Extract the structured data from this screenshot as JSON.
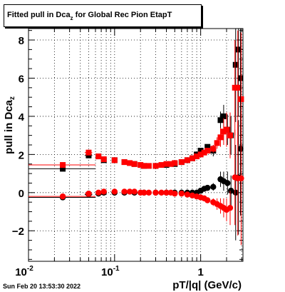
{
  "title": {
    "main": "Fitted pull in Dca",
    "sub": "z",
    "rest": " for Global Rec Pion EtapT"
  },
  "datestamp": "Sun Feb 20 13:53:30 2022",
  "chart_data": {
    "type": "scatter",
    "xlabel": "pT/|q| (GeV/c)",
    "ylabel": "pull in Dca",
    "ylabel_sub": "z",
    "x_scale": "log",
    "xlim": [
      0.01,
      3.1
    ],
    "ylim": [
      -3.6,
      8.6
    ],
    "grid": true,
    "x_ticks": [
      {
        "v": 0.01,
        "label": "10",
        "exp": "-2"
      },
      {
        "v": 0.1,
        "label": "10",
        "exp": "-1"
      },
      {
        "v": 1,
        "label": "1",
        "exp": ""
      }
    ],
    "y_ticks": [
      {
        "v": -2,
        "label": "−2"
      },
      {
        "v": 0,
        "label": "0"
      },
      {
        "v": 2,
        "label": "2"
      },
      {
        "v": 4,
        "label": "4"
      },
      {
        "v": 6,
        "label": "6"
      },
      {
        "v": 8,
        "label": "8"
      }
    ],
    "colors": {
      "black_series": "#000000",
      "red_series": "#ff0000"
    },
    "series": [
      {
        "color": "black",
        "marker": "square",
        "x": [
          0.025,
          0.05,
          0.065,
          0.075,
          0.1,
          0.13,
          0.17,
          0.22,
          0.3,
          0.4,
          0.5,
          0.6,
          0.7,
          0.8,
          0.9,
          1.0,
          1.2,
          1.4,
          1.7,
          1.85,
          2.05,
          2.25,
          2.55,
          2.75,
          2.9
        ],
        "y": [
          1.25,
          1.95,
          1.9,
          1.7,
          1.7,
          1.6,
          1.5,
          1.4,
          1.4,
          1.45,
          1.5,
          1.6,
          1.7,
          1.8,
          2.0,
          2.2,
          2.4,
          2.2,
          3.8,
          4.0,
          3.3,
          3.0,
          6.7,
          7.5,
          6.0
        ],
        "err": [
          0.12,
          0.1,
          0.08,
          0.08,
          0.07,
          0.06,
          0.05,
          0.05,
          0.05,
          0.05,
          0.05,
          0.06,
          0.06,
          0.07,
          0.08,
          0.1,
          0.12,
          0.3,
          0.45,
          0.6,
          0.8,
          1.0,
          3.0,
          3.5,
          3.8
        ],
        "xerr_low": [
          0.015,
          0.005,
          0.003,
          0.003,
          0.005,
          0.005,
          0.005,
          0.01,
          0.01,
          0.01,
          0.01,
          0.01,
          0.01,
          0.01,
          0.01,
          0.01,
          0.02,
          0.02,
          0.03,
          0.03,
          0.03,
          0.03,
          0.03,
          0.03,
          0.03
        ],
        "xerr_high": [
          0.035,
          0.005,
          0.003,
          0.003,
          0.005,
          0.005,
          0.005,
          0.01,
          0.01,
          0.01,
          0.01,
          0.01,
          0.01,
          0.01,
          0.01,
          0.01,
          0.02,
          0.02,
          0.03,
          0.03,
          0.03,
          0.03,
          0.03,
          0.03,
          0.03
        ]
      },
      {
        "color": "red",
        "marker": "square",
        "x": [
          0.025,
          0.05,
          0.065,
          0.075,
          0.1,
          0.13,
          0.15,
          0.17,
          0.2,
          0.22,
          0.25,
          0.3,
          0.35,
          0.4,
          0.45,
          0.5,
          0.6,
          0.7,
          0.8,
          0.9,
          1.0,
          1.1,
          1.2,
          1.4,
          1.55,
          1.7,
          1.85,
          2.0,
          2.2,
          2.5,
          2.7,
          2.95
        ],
        "y": [
          1.45,
          2.1,
          1.9,
          1.75,
          1.7,
          1.6,
          1.55,
          1.5,
          1.45,
          1.4,
          1.4,
          1.4,
          1.45,
          1.5,
          1.5,
          1.55,
          1.6,
          1.7,
          1.8,
          1.9,
          2.0,
          2.1,
          2.2,
          2.3,
          2.6,
          2.9,
          3.2,
          3.3,
          3.0,
          5.5,
          5.5,
          4.9
        ],
        "err": [
          0.12,
          0.1,
          0.08,
          0.08,
          0.07,
          0.06,
          0.06,
          0.05,
          0.05,
          0.05,
          0.05,
          0.05,
          0.05,
          0.05,
          0.05,
          0.05,
          0.06,
          0.06,
          0.07,
          0.08,
          0.1,
          0.12,
          0.15,
          0.2,
          0.3,
          0.5,
          0.7,
          0.9,
          1.2,
          2.5,
          3.0,
          3.5
        ],
        "xerr_low": [
          0.015,
          0.005,
          0.003,
          0.003,
          0.005,
          0.005,
          0.005,
          0.005,
          0.005,
          0.01,
          0.01,
          0.01,
          0.01,
          0.01,
          0.01,
          0.01,
          0.01,
          0.01,
          0.01,
          0.01,
          0.01,
          0.01,
          0.02,
          0.02,
          0.02,
          0.03,
          0.03,
          0.03,
          0.03,
          0.03,
          0.03,
          0.03
        ],
        "xerr_high": [
          0.035,
          0.005,
          0.003,
          0.003,
          0.005,
          0.005,
          0.005,
          0.005,
          0.005,
          0.01,
          0.01,
          0.01,
          0.01,
          0.01,
          0.01,
          0.01,
          0.01,
          0.01,
          0.01,
          0.01,
          0.01,
          0.01,
          0.02,
          0.02,
          0.02,
          0.03,
          0.03,
          0.03,
          0.03,
          0.03,
          0.03,
          0.03
        ]
      },
      {
        "color": "black",
        "marker": "circle",
        "x": [
          0.025,
          0.05,
          0.065,
          0.075,
          0.1,
          0.13,
          0.17,
          0.22,
          0.3,
          0.4,
          0.5,
          0.6,
          0.7,
          0.8,
          0.9,
          1.0,
          1.1,
          1.2,
          1.4,
          1.7,
          1.85,
          2.05,
          2.25,
          2.55,
          2.75,
          2.9
        ],
        "y": [
          -0.25,
          -0.1,
          -0.05,
          0.0,
          0.0,
          0.0,
          0.0,
          0.0,
          0.0,
          0.0,
          0.0,
          0.0,
          0.0,
          0.0,
          0.0,
          0.1,
          0.2,
          0.25,
          0.3,
          0.7,
          0.6,
          0.5,
          0.1,
          0.0,
          0.8,
          2.3
        ],
        "err": [
          0.12,
          0.1,
          0.08,
          0.08,
          0.07,
          0.06,
          0.05,
          0.05,
          0.05,
          0.05,
          0.05,
          0.06,
          0.06,
          0.07,
          0.08,
          0.1,
          0.12,
          0.15,
          0.2,
          0.4,
          0.5,
          0.6,
          0.8,
          2.5,
          3.0,
          3.5
        ],
        "xerr_low": [
          0.015,
          0.005,
          0.003,
          0.003,
          0.005,
          0.005,
          0.005,
          0.01,
          0.01,
          0.01,
          0.01,
          0.01,
          0.01,
          0.01,
          0.01,
          0.01,
          0.01,
          0.02,
          0.02,
          0.03,
          0.03,
          0.03,
          0.03,
          0.03,
          0.03,
          0.03
        ],
        "xerr_high": [
          0.035,
          0.005,
          0.003,
          0.003,
          0.005,
          0.005,
          0.005,
          0.01,
          0.01,
          0.01,
          0.01,
          0.01,
          0.01,
          0.01,
          0.01,
          0.01,
          0.01,
          0.02,
          0.02,
          0.03,
          0.03,
          0.03,
          0.03,
          0.03,
          0.03,
          0.03
        ]
      },
      {
        "color": "red",
        "marker": "circle",
        "x": [
          0.025,
          0.05,
          0.065,
          0.075,
          0.1,
          0.13,
          0.15,
          0.17,
          0.2,
          0.22,
          0.25,
          0.3,
          0.35,
          0.4,
          0.45,
          0.5,
          0.6,
          0.7,
          0.8,
          0.9,
          1.0,
          1.1,
          1.2,
          1.4,
          1.55,
          1.7,
          1.85,
          2.0,
          2.2,
          2.5,
          2.7,
          2.95
        ],
        "y": [
          -0.2,
          -0.05,
          0.0,
          0.05,
          0.05,
          0.05,
          0.05,
          0.05,
          0.0,
          0.0,
          0.0,
          0.0,
          0.0,
          0.0,
          0.0,
          -0.05,
          -0.05,
          -0.1,
          -0.15,
          -0.2,
          -0.25,
          -0.3,
          -0.4,
          -0.5,
          -0.6,
          -0.7,
          -0.8,
          -0.9,
          -0.8,
          0.8,
          0.75,
          0.75
        ],
        "err": [
          0.12,
          0.1,
          0.08,
          0.08,
          0.07,
          0.06,
          0.06,
          0.05,
          0.05,
          0.05,
          0.05,
          0.05,
          0.05,
          0.05,
          0.05,
          0.05,
          0.06,
          0.06,
          0.07,
          0.08,
          0.1,
          0.12,
          0.15,
          0.2,
          0.3,
          0.4,
          0.5,
          0.6,
          0.9,
          2.5,
          3.0,
          3.5
        ],
        "xerr_low": [
          0.015,
          0.005,
          0.003,
          0.003,
          0.005,
          0.005,
          0.005,
          0.005,
          0.005,
          0.01,
          0.01,
          0.01,
          0.01,
          0.01,
          0.01,
          0.01,
          0.01,
          0.01,
          0.01,
          0.01,
          0.01,
          0.01,
          0.02,
          0.02,
          0.02,
          0.03,
          0.03,
          0.03,
          0.03,
          0.03,
          0.03,
          0.03
        ],
        "xerr_high": [
          0.035,
          0.005,
          0.003,
          0.003,
          0.005,
          0.005,
          0.005,
          0.005,
          0.005,
          0.01,
          0.01,
          0.01,
          0.01,
          0.01,
          0.01,
          0.01,
          0.01,
          0.01,
          0.01,
          0.01,
          0.01,
          0.01,
          0.02,
          0.02,
          0.02,
          0.03,
          0.03,
          0.03,
          0.03,
          0.03,
          0.03,
          0.03
        ]
      }
    ]
  }
}
